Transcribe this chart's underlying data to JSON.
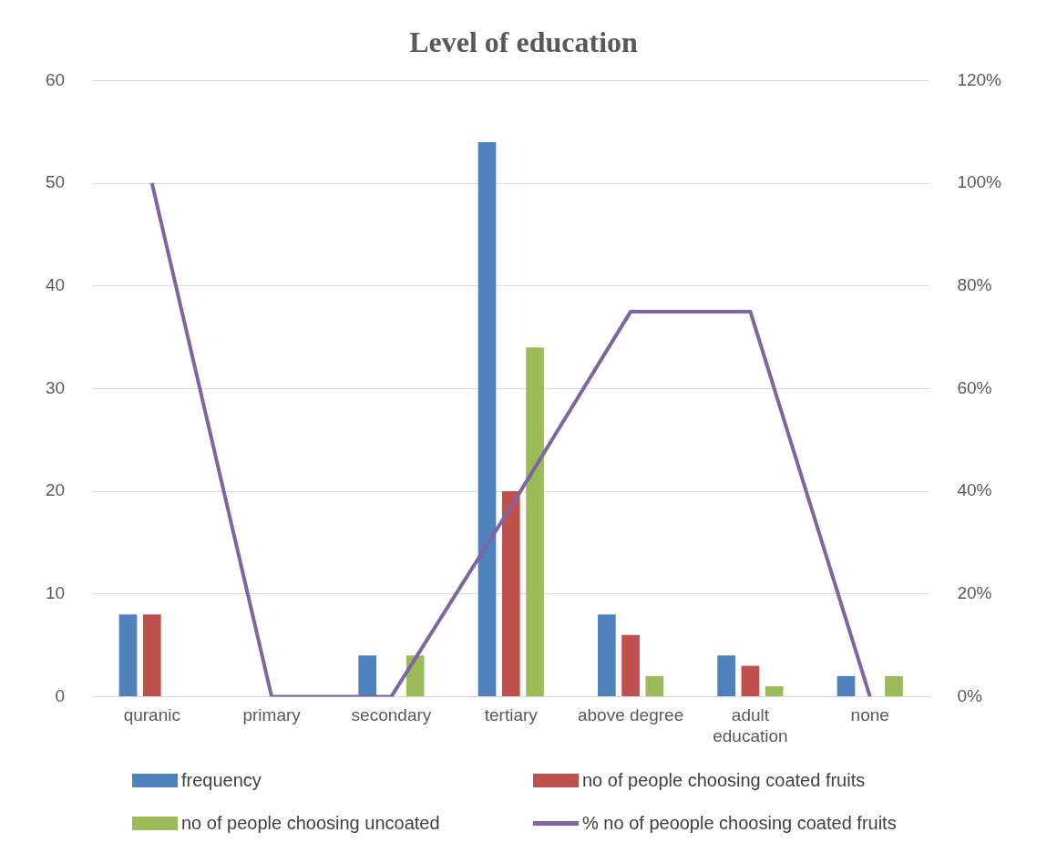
{
  "chart_data": {
    "type": "bar",
    "title": "Level of education",
    "categories": [
      "quranic",
      "primary",
      "secondary",
      "tertiary",
      "above degree",
      "adult education",
      "none"
    ],
    "series": [
      {
        "name": "frequency",
        "color": "#4f81bd",
        "values": [
          8,
          0,
          4,
          54,
          8,
          4,
          2
        ]
      },
      {
        "name": "no of people choosing coated fruits",
        "color": "#c0504d",
        "values": [
          8,
          0,
          0,
          20,
          6,
          3,
          0
        ]
      },
      {
        "name": "no of people choosing uncoated",
        "color": "#9bbb59",
        "values": [
          0,
          0,
          4,
          34,
          2,
          1,
          2
        ]
      },
      {
        "name": "% no of peoople choosing coated fruits",
        "color": "#8064a2",
        "type": "line",
        "axis": "y2",
        "values": [
          100,
          0,
          0,
          37,
          75,
          75,
          0
        ]
      }
    ],
    "ylim": [
      0,
      60
    ],
    "yticks": [
      0,
      10,
      20,
      30,
      40,
      50,
      60
    ],
    "y2lim": [
      0,
      120
    ],
    "y2ticks": [
      {
        "value": 0,
        "label": "0%"
      },
      {
        "value": 20,
        "label": "20%"
      },
      {
        "value": 40,
        "label": "40%"
      },
      {
        "value": 60,
        "label": "60%"
      },
      {
        "value": 80,
        "label": "80%"
      },
      {
        "value": 100,
        "label": "100%"
      },
      {
        "value": 120,
        "label": "120%"
      }
    ],
    "grid": "y",
    "legend": "bottom",
    "marker": "none"
  }
}
